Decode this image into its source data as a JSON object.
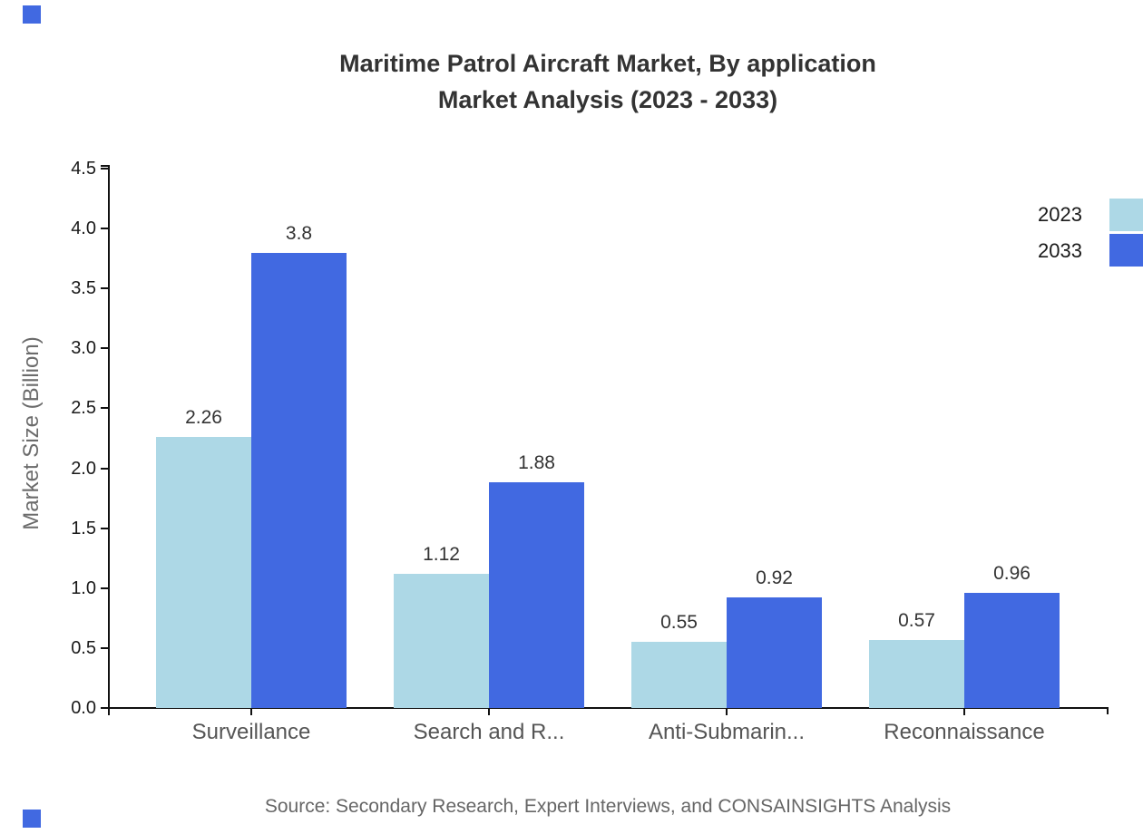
{
  "title": {
    "line1": "Maritime Patrol Aircraft Market, By application",
    "line2": "Market Analysis (2023 - 2033)"
  },
  "source": "Source: Secondary Research, Expert Interviews, and CONSAINSIGHTS Analysis",
  "colors": {
    "series_2023": "#ADD8E6",
    "series_2033": "#4169E1",
    "axis": "#111111",
    "brand_mark": "#4169E1"
  },
  "legend": {
    "items": [
      {
        "label": "2023",
        "color": "#ADD8E6"
      },
      {
        "label": "2033",
        "color": "#4169E1"
      }
    ]
  },
  "chart_data": {
    "type": "bar",
    "title": "Maritime Patrol Aircraft Market, By application Market Analysis (2023 - 2033)",
    "categories": [
      "Surveillance",
      "Search and R...",
      "Anti-Submarin...",
      "Reconnaissance"
    ],
    "series": [
      {
        "name": "2023",
        "color": "#ADD8E6",
        "values": [
          2.26,
          1.12,
          0.55,
          0.57
        ]
      },
      {
        "name": "2033",
        "color": "#4169E1",
        "values": [
          3.8,
          1.88,
          0.92,
          0.96
        ]
      }
    ],
    "value_labels": [
      [
        "2.26",
        "1.12",
        "0.55",
        "0.57"
      ],
      [
        "3.8",
        "1.88",
        "0.92",
        "0.96"
      ]
    ],
    "xlabel": "",
    "ylabel": "Market Size (Billion)",
    "ylim": [
      0,
      4.5
    ],
    "ytick_step": 0.5,
    "ytick_labels": [
      "0.0",
      "0.5",
      "1.0",
      "1.5",
      "2.0",
      "2.5",
      "3.0",
      "3.5",
      "4.0",
      "4.5"
    ],
    "grid": false,
    "legend_position": "top-right"
  }
}
